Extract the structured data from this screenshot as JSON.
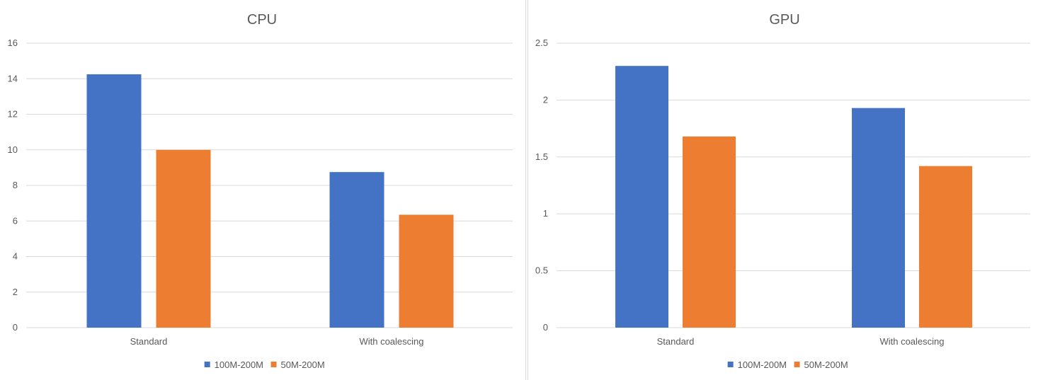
{
  "chart_data": [
    {
      "type": "bar",
      "title": "CPU",
      "categories": [
        "Standard",
        "With coalescing"
      ],
      "series": [
        {
          "name": "100M-200M",
          "color": "#4472C4",
          "values": [
            14.25,
            8.75
          ]
        },
        {
          "name": "50M-200M",
          "color": "#ED7D31",
          "values": [
            10.0,
            6.35
          ]
        }
      ],
      "ylim": [
        0,
        16
      ],
      "yticks": [
        "0",
        "2",
        "4",
        "6",
        "8",
        "10",
        "12",
        "14",
        "16"
      ],
      "grid": true,
      "legend": "bottom"
    },
    {
      "type": "bar",
      "title": "GPU",
      "categories": [
        "Standard",
        "With coalescing"
      ],
      "series": [
        {
          "name": "100M-200M",
          "color": "#4472C4",
          "values": [
            2.3,
            1.93
          ]
        },
        {
          "name": "50M-200M",
          "color": "#ED7D31",
          "values": [
            1.68,
            1.42
          ]
        }
      ],
      "ylim": [
        0,
        2.5
      ],
      "yticks": [
        "0",
        "0.5",
        "1",
        "1.5",
        "2",
        "2.5"
      ],
      "grid": true,
      "legend": "bottom"
    }
  ]
}
